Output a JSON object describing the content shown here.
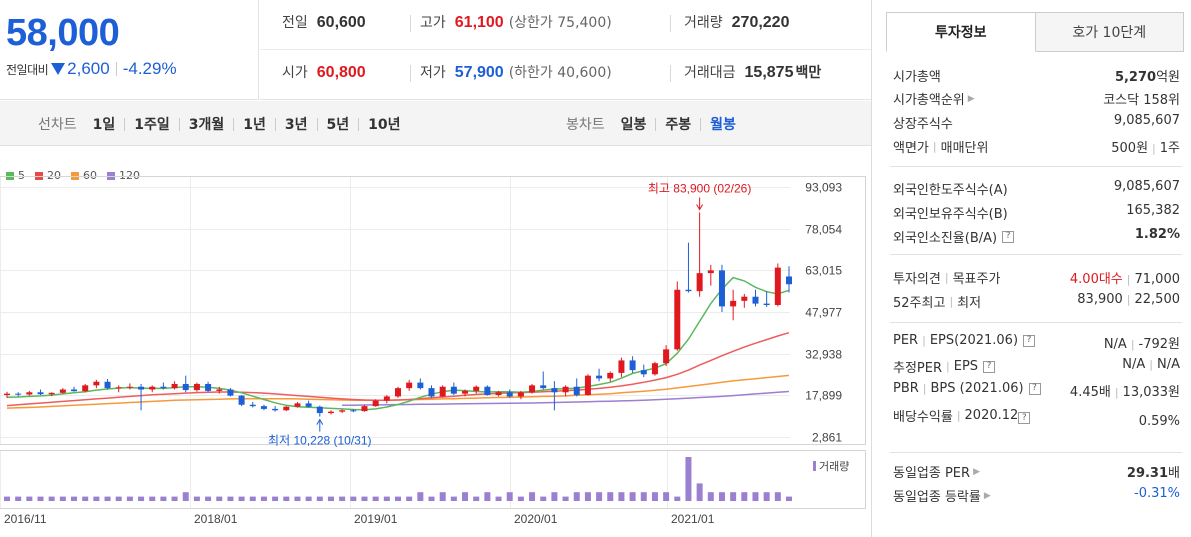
{
  "summary": {
    "price": "58,000",
    "change_label": "전일대비",
    "change_amount": "2,600",
    "change_percent": "-4.29%"
  },
  "quotes": {
    "prev_close_label": "전일",
    "prev_close": "60,600",
    "high_label": "고가",
    "high": "61,100",
    "upper_limit": "(상한가 75,400)",
    "volume_label": "거래량",
    "volume": "270,220",
    "open_label": "시가",
    "open": "60,800",
    "low_label": "저가",
    "low": "57,900",
    "lower_limit": "(하한가 40,600)",
    "amount_label": "거래대금",
    "amount": "15,875",
    "amount_unit": "백만"
  },
  "toolbar": {
    "line_chart_label": "선차트",
    "line_periods": [
      "1일",
      "1주일",
      "3개월",
      "1년",
      "3년",
      "5년",
      "10년"
    ],
    "candle_chart_label": "봉차트",
    "candle_periods": [
      "일봉",
      "주봉",
      "월봉"
    ],
    "active_candle_period": "월봉"
  },
  "colors": {
    "up": "#e0191f",
    "down": "#1d5fd6",
    "ma5": "#5cb85c",
    "ma20": "#f05b5b",
    "ma60": "#f59a3b",
    "ma120": "#9b7fd0",
    "volume": "#9b7fd0"
  },
  "chart_data": {
    "type": "candlestick",
    "legend": [
      {
        "name": "5",
        "color": "#5cb85c"
      },
      {
        "name": "20",
        "color": "#e84a4a"
      },
      {
        "name": "60",
        "color": "#f59a3b"
      },
      {
        "name": "120",
        "color": "#9b7fd0"
      }
    ],
    "y_ticks": [
      "93,093",
      "78,054",
      "63,015",
      "47,977",
      "32,938",
      "17,899",
      "2,861"
    ],
    "ylim": [
      2861,
      93093
    ],
    "x_ticks": [
      "2016/11",
      "2018/01",
      "2019/01",
      "2020/01",
      "2021/01"
    ],
    "high_annotation": "최고 83,900 (02/26)",
    "low_annotation": "최저 10,228 (10/31)",
    "volume_label": "거래량",
    "candles": [
      [
        18000,
        19200,
        17000,
        18500
      ],
      [
        18500,
        19000,
        17500,
        18200
      ],
      [
        18200,
        19500,
        17800,
        19000
      ],
      [
        19000,
        20000,
        18000,
        18300
      ],
      [
        18300,
        19000,
        17600,
        18800
      ],
      [
        18800,
        20500,
        18500,
        20000
      ],
      [
        20000,
        21000,
        19200,
        19400
      ],
      [
        19400,
        22000,
        19000,
        21500
      ],
      [
        21500,
        23500,
        20500,
        22800
      ],
      [
        22800,
        23800,
        20000,
        20500
      ],
      [
        20500,
        21500,
        19000,
        20800
      ],
      [
        20800,
        22200,
        20000,
        21000
      ],
      [
        21000,
        22000,
        12500,
        20000
      ],
      [
        20000,
        21500,
        19000,
        21000
      ],
      [
        21000,
        22500,
        20000,
        20500
      ],
      [
        20500,
        23000,
        20000,
        22000
      ],
      [
        22000,
        25000,
        19000,
        19800
      ],
      [
        19800,
        22500,
        19200,
        22000
      ],
      [
        22000,
        22800,
        19000,
        19500
      ],
      [
        19500,
        21000,
        18500,
        20000
      ],
      [
        20000,
        20500,
        17500,
        17800
      ],
      [
        17800,
        18000,
        14000,
        14500
      ],
      [
        14500,
        15500,
        13500,
        14000
      ],
      [
        14000,
        14500,
        12500,
        13000
      ],
      [
        13000,
        14000,
        12000,
        12500
      ],
      [
        12500,
        14000,
        12200,
        13800
      ],
      [
        13800,
        15500,
        13500,
        15000
      ],
      [
        15000,
        16000,
        13500,
        13800
      ],
      [
        13800,
        14200,
        10228,
        11500
      ],
      [
        11500,
        12500,
        11000,
        12000
      ],
      [
        12000,
        12800,
        11500,
        12500
      ],
      [
        12500,
        13000,
        11800,
        12200
      ],
      [
        12200,
        14500,
        12000,
        14000
      ],
      [
        14000,
        16500,
        13800,
        16000
      ],
      [
        16000,
        18000,
        15000,
        17500
      ],
      [
        17500,
        21000,
        17000,
        20500
      ],
      [
        20500,
        23500,
        19500,
        22500
      ],
      [
        22500,
        24000,
        20000,
        20500
      ],
      [
        20500,
        21500,
        17000,
        17500
      ],
      [
        17500,
        21500,
        17200,
        21000
      ],
      [
        21000,
        22500,
        18000,
        18500
      ],
      [
        18500,
        20000,
        17500,
        19500
      ],
      [
        19500,
        21500,
        18500,
        21000
      ],
      [
        21000,
        21500,
        17800,
        18000
      ],
      [
        18000,
        19500,
        17500,
        19000
      ],
      [
        19000,
        20000,
        17000,
        17500
      ],
      [
        17500,
        19500,
        16500,
        19000
      ],
      [
        19000,
        22000,
        18500,
        21500
      ],
      [
        21500,
        26500,
        20000,
        20500
      ],
      [
        20500,
        23000,
        12500,
        19000
      ],
      [
        19000,
        21500,
        17500,
        21000
      ],
      [
        21000,
        24000,
        17500,
        18000
      ],
      [
        18000,
        25500,
        17800,
        25000
      ],
      [
        25000,
        27500,
        23000,
        24000
      ],
      [
        24000,
        26500,
        22800,
        26000
      ],
      [
        26000,
        31500,
        24500,
        30500
      ],
      [
        30500,
        32000,
        26000,
        27000
      ],
      [
        27000,
        29000,
        24500,
        25500
      ],
      [
        25500,
        30000,
        25000,
        29500
      ],
      [
        29500,
        36000,
        28500,
        34500
      ],
      [
        34500,
        59000,
        34000,
        56000
      ],
      [
        56000,
        73000,
        55000,
        55500
      ],
      [
        55500,
        83900,
        53500,
        62000
      ],
      [
        62000,
        65000,
        57500,
        63000
      ],
      [
        63000,
        65000,
        48000,
        50000
      ],
      [
        50000,
        56000,
        45000,
        52000
      ],
      [
        52000,
        54500,
        49500,
        53500
      ],
      [
        53500,
        56000,
        50000,
        51000
      ],
      [
        51000,
        55500,
        49800,
        50500
      ],
      [
        50500,
        65500,
        50000,
        64000
      ],
      [
        60800,
        64500,
        55000,
        58000
      ]
    ],
    "ma5": [
      17200,
      17300,
      17500,
      17700,
      18000,
      18400,
      18800,
      19200,
      19800,
      20200,
      20500,
      20700,
      20500,
      20400,
      20400,
      20700,
      21000,
      21000,
      20800,
      20400,
      19800,
      18800,
      17600,
      16400,
      15200,
      14300,
      13800,
      13600,
      13400,
      13200,
      13000,
      12800,
      12700,
      13000,
      13700,
      14600,
      15800,
      17200,
      18300,
      19200,
      19800,
      19600,
      19300,
      19100,
      19200,
      19200,
      19000,
      19300,
      19800,
      20200,
      20300,
      20500,
      21100,
      21800,
      22600,
      24100,
      25800,
      26800,
      27700,
      29300,
      33100,
      38200,
      44600,
      51000,
      56200,
      60400,
      59200,
      56900,
      55300,
      54500,
      55800
    ],
    "ma20": [
      14200,
      14500,
      14800,
      15100,
      15400,
      15700,
      16000,
      16300,
      16600,
      16900,
      17200,
      17500,
      17800,
      18100,
      18300,
      18500,
      18700,
      18900,
      19000,
      19100,
      19100,
      19000,
      18900,
      18700,
      18400,
      18100,
      17800,
      17500,
      17200,
      16900,
      16600,
      16400,
      16200,
      16100,
      16100,
      16200,
      16400,
      16700,
      17000,
      17300,
      17600,
      17900,
      18200,
      18400,
      18600,
      18800,
      18900,
      19000,
      19200,
      19400,
      19600,
      19800,
      20100,
      20400,
      20800,
      21300,
      21900,
      22600,
      23400,
      24300,
      25500,
      27000,
      28800,
      30500,
      32200,
      33800,
      35300,
      36700,
      38000,
      39300,
      40500
    ],
    "ma60": [
      13300,
      13400,
      13500,
      13700,
      13900,
      14100,
      14300,
      14500,
      14700,
      14900,
      15100,
      15300,
      15500,
      15700,
      15900,
      16100,
      16200,
      16300,
      16400,
      16500,
      16600,
      16700,
      16700,
      16700,
      16700,
      16700,
      16600,
      16500,
      16400,
      16300,
      16200,
      16100,
      16100,
      16100,
      16100,
      16200,
      16300,
      16400,
      16500,
      16600,
      16700,
      16800,
      16900,
      17000,
      17100,
      17200,
      17300,
      17400,
      17500,
      17600,
      17700,
      17900,
      18100,
      18300,
      18500,
      18800,
      19100,
      19400,
      19700,
      20100,
      20600,
      21100,
      21600,
      22100,
      22600,
      23100,
      23500,
      23900,
      24300,
      24700,
      25100
    ],
    "ma120": [
      null,
      null,
      null,
      null,
      null,
      null,
      null,
      null,
      null,
      null,
      null,
      null,
      null,
      null,
      null,
      null,
      null,
      null,
      null,
      null,
      null,
      null,
      null,
      null,
      null,
      null,
      null,
      null,
      null,
      null,
      14300,
      14350,
      14400,
      14450,
      14500,
      14550,
      14600,
      14650,
      14700,
      14750,
      14800,
      14850,
      14900,
      14950,
      15000,
      15050,
      15100,
      15150,
      15200,
      15300,
      15400,
      15500,
      15600,
      15700,
      15800,
      15900,
      16000,
      16100,
      16300,
      16500,
      16700,
      16900,
      17100,
      17300,
      17500,
      17800,
      18100,
      18400,
      18700,
      19000,
      19300
    ],
    "volumes": [
      1,
      1,
      1,
      1,
      1,
      1,
      1,
      1,
      1,
      1,
      1,
      1,
      1,
      1,
      1,
      1,
      2,
      1,
      1,
      1,
      1,
      1,
      1,
      1,
      1,
      1,
      1,
      1,
      1,
      1,
      1,
      1,
      1,
      1,
      1,
      1,
      1,
      2,
      1,
      2,
      1,
      2,
      1,
      2,
      1,
      2,
      1,
      2,
      1,
      2,
      1,
      2,
      2,
      2,
      2,
      2,
      2,
      2,
      2,
      2,
      1,
      10,
      4,
      2,
      2,
      2,
      2,
      2,
      2,
      2,
      1
    ]
  },
  "right_panel": {
    "tabs": [
      "투자정보",
      "호가 10단계"
    ],
    "active_tab": "투자정보",
    "market_cap_label": "시가총액",
    "market_cap_value": "5,270",
    "market_cap_unit": "억원",
    "market_cap_rank_label": "시가총액순위",
    "market_cap_rank_value": "코스닥 158위",
    "listed_shares_label": "상장주식수",
    "listed_shares_value": "9,085,607",
    "par_label": "액면가",
    "trade_unit_label": "매매단위",
    "par_value": "500원",
    "trade_unit_value": "1주",
    "foreign_limit_label": "외국인한도주식수(A)",
    "foreign_limit_value": "9,085,607",
    "foreign_hold_label": "외국인보유주식수(B)",
    "foreign_hold_value": "165,382",
    "foreign_ratio_label": "외국인소진율(B/A)",
    "foreign_ratio_value": "1.82%",
    "opinion_label": "투자의견",
    "target_label": "목표주가",
    "opinion_value": "4.00대수",
    "target_value": "71,000",
    "week52_high_label": "52주최고",
    "week52_low_label": "최저",
    "week52_high_value": "83,900",
    "week52_low_value": "22,500",
    "per_label": "PER",
    "eps_label": "EPS(2021.06)",
    "per_value": "N/A",
    "eps_value": "-792원",
    "est_per_label": "추정PER",
    "est_eps_label": "EPS",
    "est_per_value": "N/A",
    "est_eps_value": "N/A",
    "pbr_label": "PBR",
    "bps_label": "BPS (2021.06)",
    "pbr_value": "4.45배",
    "bps_value": "13,033원",
    "dividend_label": "배당수익률",
    "dividend_period": "2020.12",
    "dividend_value": "0.59%",
    "industry_per_label": "동일업종 PER",
    "industry_per_value": "29.31",
    "industry_per_unit": "배",
    "industry_change_label": "동일업종 등락률",
    "industry_change_value": "-0.31%"
  }
}
